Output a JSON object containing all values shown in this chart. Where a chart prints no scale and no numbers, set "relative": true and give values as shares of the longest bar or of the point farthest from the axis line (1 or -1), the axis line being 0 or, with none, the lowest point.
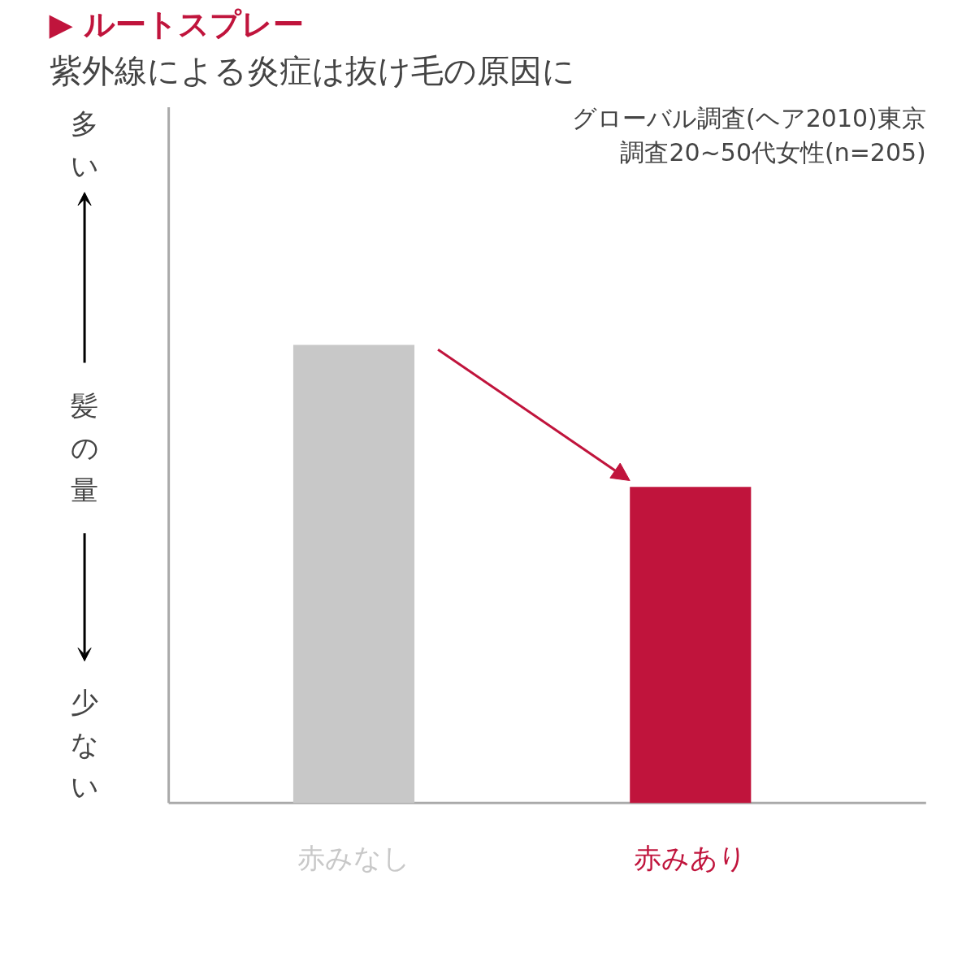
{
  "chart_data": {
    "type": "bar",
    "title": "▶ ルートスプレー",
    "subtitle": "紫外線による炎症は抜け毛の原因に",
    "ylabel": "髪の量",
    "relative": true,
    "categories": [
      "赤みなし",
      "赤みあり"
    ],
    "values": [
      1,
      0.69
    ],
    "colors": [
      "#c8c8c8",
      "#c0143c"
    ],
    "annotations": [
      "多い",
      "少ない",
      "グローバル調査(ヘア2010)東京",
      "調査20~50代女性(n=205)"
    ]
  }
}
